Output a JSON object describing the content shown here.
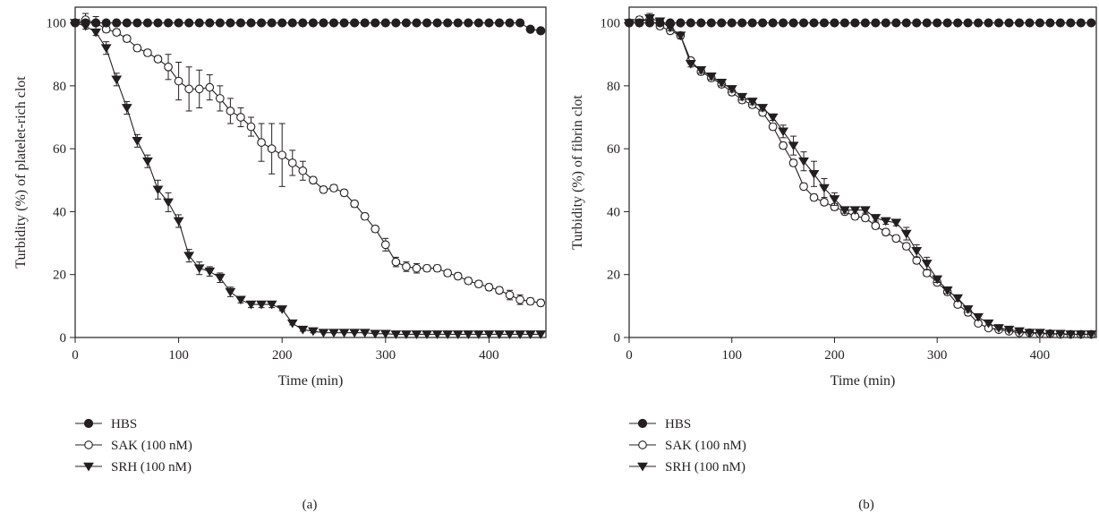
{
  "chart_data": [
    {
      "type": "line",
      "panel_label": "(a)",
      "xlabel": "Time (min)",
      "ylabel": "Turbidity (%) of platelet-rich clot",
      "xlim": [
        0,
        455
      ],
      "ylim": [
        0,
        105
      ],
      "xticks": [
        0,
        100,
        200,
        300,
        400
      ],
      "yticks": [
        0,
        20,
        40,
        60,
        80,
        100
      ],
      "grid": false,
      "legend_position": "below-left",
      "x": [
        0,
        10,
        20,
        30,
        40,
        50,
        60,
        70,
        80,
        90,
        100,
        110,
        120,
        130,
        140,
        150,
        160,
        170,
        180,
        190,
        200,
        210,
        220,
        230,
        240,
        250,
        260,
        270,
        280,
        290,
        300,
        310,
        320,
        330,
        340,
        350,
        360,
        370,
        380,
        390,
        400,
        410,
        420,
        430,
        440,
        450
      ],
      "series": [
        {
          "name": "HBS",
          "marker": "filled-circle",
          "values": [
            100,
            100,
            100,
            100,
            100,
            100,
            100,
            100,
            100,
            100,
            100,
            100,
            100,
            100,
            100,
            100,
            100,
            100,
            100,
            100,
            100,
            100,
            100,
            100,
            100,
            100,
            100,
            100,
            100,
            100,
            100,
            100,
            100,
            100,
            100,
            100,
            100,
            100,
            100,
            100,
            100,
            100,
            100,
            100,
            98,
            97.5
          ],
          "errors": [
            0,
            0,
            0,
            0,
            0,
            0,
            0,
            0,
            0,
            0,
            0,
            0,
            0,
            0,
            0,
            0,
            0,
            0,
            0,
            0,
            0,
            0,
            0,
            0,
            0,
            0,
            0,
            0,
            0,
            0,
            0,
            0,
            0,
            0,
            0,
            0,
            0,
            0,
            0,
            0,
            0,
            0,
            0,
            0,
            0,
            0
          ]
        },
        {
          "name": "SAK (100 nM)",
          "marker": "open-circle",
          "values": [
            100,
            101,
            100,
            98,
            97,
            95,
            92,
            90.5,
            88.5,
            86,
            81.5,
            79,
            79,
            79.5,
            76,
            72,
            70,
            67,
            62,
            60,
            58,
            55.5,
            53,
            50,
            47,
            47.5,
            46,
            42.5,
            38.5,
            34.5,
            29.5,
            24,
            22.5,
            22,
            22,
            22,
            20.5,
            19.5,
            18,
            17,
            16,
            15,
            13.5,
            12,
            11.5,
            11
          ],
          "errors": [
            0,
            2,
            2,
            1,
            1,
            1,
            1,
            1,
            1,
            4,
            6,
            7,
            6,
            4,
            4,
            4,
            3,
            3,
            6,
            8,
            10,
            4,
            3,
            1,
            1,
            1,
            1,
            1,
            1,
            1,
            2,
            1.5,
            1.5,
            1.5,
            1,
            1,
            1,
            1,
            1,
            1,
            1,
            1,
            1.5,
            1.5,
            1,
            1
          ]
        },
        {
          "name": "SRH (100 nM)",
          "marker": "filled-triangle-down",
          "values": [
            100,
            99,
            97,
            92,
            82,
            73,
            62.5,
            56,
            47,
            43,
            37,
            26,
            22,
            21,
            19,
            14.5,
            12,
            10.5,
            10.5,
            10.5,
            9,
            4.5,
            2.5,
            2,
            1.5,
            1.5,
            1.5,
            1.5,
            1.5,
            1.2,
            1.2,
            1,
            1,
            1,
            1,
            1,
            1,
            1,
            1,
            1,
            1,
            1,
            1,
            1,
            1,
            1
          ],
          "errors": [
            0,
            1,
            1,
            2,
            2,
            2,
            2,
            2,
            3,
            3,
            2,
            2,
            2,
            1.5,
            1.5,
            1.5,
            1,
            1,
            1,
            1,
            0.5,
            0.5,
            0.5,
            0.5,
            0,
            0,
            0,
            0,
            0,
            0,
            0,
            0,
            0,
            0,
            0,
            0,
            0,
            0,
            0,
            0,
            0,
            0,
            0,
            0,
            0,
            0
          ]
        }
      ]
    },
    {
      "type": "line",
      "panel_label": "(b)",
      "xlabel": "Time (min)",
      "ylabel": "Turbidity (%) of fibrin clot",
      "xlim": [
        0,
        455
      ],
      "ylim": [
        0,
        105
      ],
      "xticks": [
        0,
        100,
        200,
        300,
        400
      ],
      "yticks": [
        0,
        20,
        40,
        60,
        80,
        100
      ],
      "grid": false,
      "legend_position": "below-left",
      "x": [
        0,
        10,
        20,
        30,
        40,
        50,
        60,
        70,
        80,
        90,
        100,
        110,
        120,
        130,
        140,
        150,
        160,
        170,
        180,
        190,
        200,
        210,
        220,
        230,
        240,
        250,
        260,
        270,
        280,
        290,
        300,
        310,
        320,
        330,
        340,
        350,
        360,
        370,
        380,
        390,
        400,
        410,
        420,
        430,
        440,
        450
      ],
      "series": [
        {
          "name": "HBS",
          "marker": "filled-circle",
          "values": [
            100,
            100,
            100,
            100,
            100,
            100,
            100,
            100,
            100,
            100,
            100,
            100,
            100,
            100,
            100,
            100,
            100,
            100,
            100,
            100,
            100,
            100,
            100,
            100,
            100,
            100,
            100,
            100,
            100,
            100,
            100,
            100,
            100,
            100,
            100,
            100,
            100,
            100,
            100,
            100,
            100,
            100,
            100,
            100,
            100,
            100
          ],
          "errors": [
            0,
            0,
            0,
            0,
            0,
            0,
            0,
            0,
            0,
            0,
            0,
            0,
            0,
            0,
            0,
            0,
            0,
            0,
            0,
            0,
            0,
            0,
            0,
            0,
            0,
            0,
            0,
            0,
            0,
            0,
            0,
            0,
            0,
            0,
            0,
            0,
            0,
            0,
            0,
            0,
            0,
            0,
            0,
            0,
            0,
            0
          ]
        },
        {
          "name": "SAK (100 nM)",
          "marker": "open-circle",
          "values": [
            100,
            101,
            101,
            99,
            97.5,
            96,
            88,
            84.5,
            82.5,
            80.5,
            78,
            75.5,
            74,
            71.5,
            67,
            61,
            55.5,
            48,
            44.5,
            43,
            41.5,
            40,
            38.5,
            38,
            35.5,
            33.5,
            31.5,
            29,
            24.5,
            20.5,
            17.5,
            14.5,
            10.5,
            8,
            4.5,
            3,
            2.5,
            2,
            1.5,
            1.5,
            1.2,
            1.2,
            1,
            1,
            1,
            1
          ],
          "errors": [
            0,
            1,
            1,
            1,
            1,
            1,
            1,
            1,
            1,
            1,
            1,
            1,
            1,
            1,
            1,
            1,
            1,
            1,
            1,
            1,
            1,
            1,
            1,
            1,
            1,
            1,
            1,
            1,
            1,
            1,
            1,
            1,
            1,
            1,
            0.5,
            0.5,
            0.5,
            0.5,
            0.5,
            0,
            0,
            0,
            0,
            0,
            0,
            0
          ]
        },
        {
          "name": "SRH (100 nM)",
          "marker": "filled-triangle-down",
          "values": [
            100,
            100,
            101.5,
            100.5,
            98.5,
            96,
            87,
            85,
            83,
            81,
            79,
            76.5,
            75,
            73,
            70,
            65.5,
            61,
            56,
            52,
            47.5,
            44,
            40.5,
            40.5,
            40.5,
            38,
            37,
            36.5,
            33,
            27.5,
            23.5,
            18.5,
            15,
            12.5,
            9,
            6.5,
            4.5,
            3,
            2.5,
            2,
            1.5,
            1.5,
            1.2,
            1.2,
            1,
            1,
            1
          ],
          "errors": [
            0,
            1,
            1.5,
            1,
            1,
            1,
            1,
            1,
            1,
            1,
            1,
            1,
            1,
            1,
            1,
            2,
            3,
            3,
            4,
            3,
            2,
            1,
            1,
            1,
            1,
            1,
            1,
            2,
            2,
            2,
            1,
            1,
            1,
            1,
            1,
            0.5,
            0.5,
            0.5,
            0.5,
            0,
            0,
            0,
            0,
            0,
            0,
            0
          ]
        }
      ]
    }
  ]
}
